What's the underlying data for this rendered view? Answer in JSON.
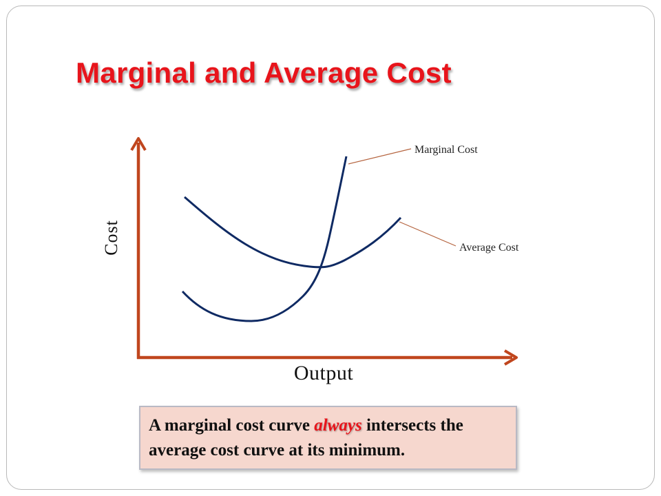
{
  "slide": {
    "title": "Marginal and Average Cost"
  },
  "diagram": {
    "y_axis_label": "Cost",
    "x_axis_label": "Output",
    "curves": [
      {
        "name": "Marginal Cost",
        "label": "Marginal Cost",
        "color": "#0f2a63"
      },
      {
        "name": "Average Cost",
        "label": "Average Cost",
        "color": "#0f2a63"
      }
    ],
    "axis_color": "#c0461e",
    "leader_color": "#b5643f"
  },
  "note": {
    "before": "A marginal cost curve ",
    "emphasis": "always",
    "after": " intersects the average cost curve at its minimum."
  },
  "colors": {
    "title": "#e8141b",
    "note_background": "#f6d7ce"
  }
}
